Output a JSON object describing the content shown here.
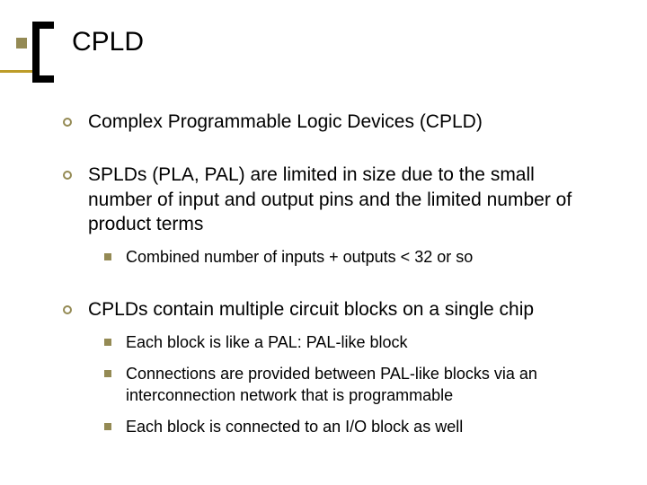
{
  "colors": {
    "accent_square": "#948a54",
    "accent_ring": "#948a54",
    "bracket": "#000000",
    "gold_line": "#bd9c28",
    "background": "#ffffff",
    "text": "#000000"
  },
  "typography": {
    "title_fontsize_pt": 30,
    "lvl1_fontsize_pt": 21,
    "lvl2_fontsize_pt": 18,
    "family": "Arial"
  },
  "title": "CPLD",
  "items": [
    {
      "level": 1,
      "text": "Complex Programmable Logic Devices (CPLD)"
    },
    {
      "level": 1,
      "text": "SPLDs (PLA, PAL) are limited in size due to the small number of input and output pins and the limited number of product terms"
    },
    {
      "level": 2,
      "text": "Combined number of inputs + outputs < 32 or so"
    },
    {
      "level": 1,
      "text": "CPLDs contain multiple circuit blocks on a single chip"
    },
    {
      "level": 2,
      "text": "Each block is like a PAL: PAL-like block"
    },
    {
      "level": 2,
      "text": "Connections are provided between PAL-like blocks via an interconnection network that is programmable"
    },
    {
      "level": 2,
      "text": "Each block is connected to an I/O block as well"
    }
  ]
}
